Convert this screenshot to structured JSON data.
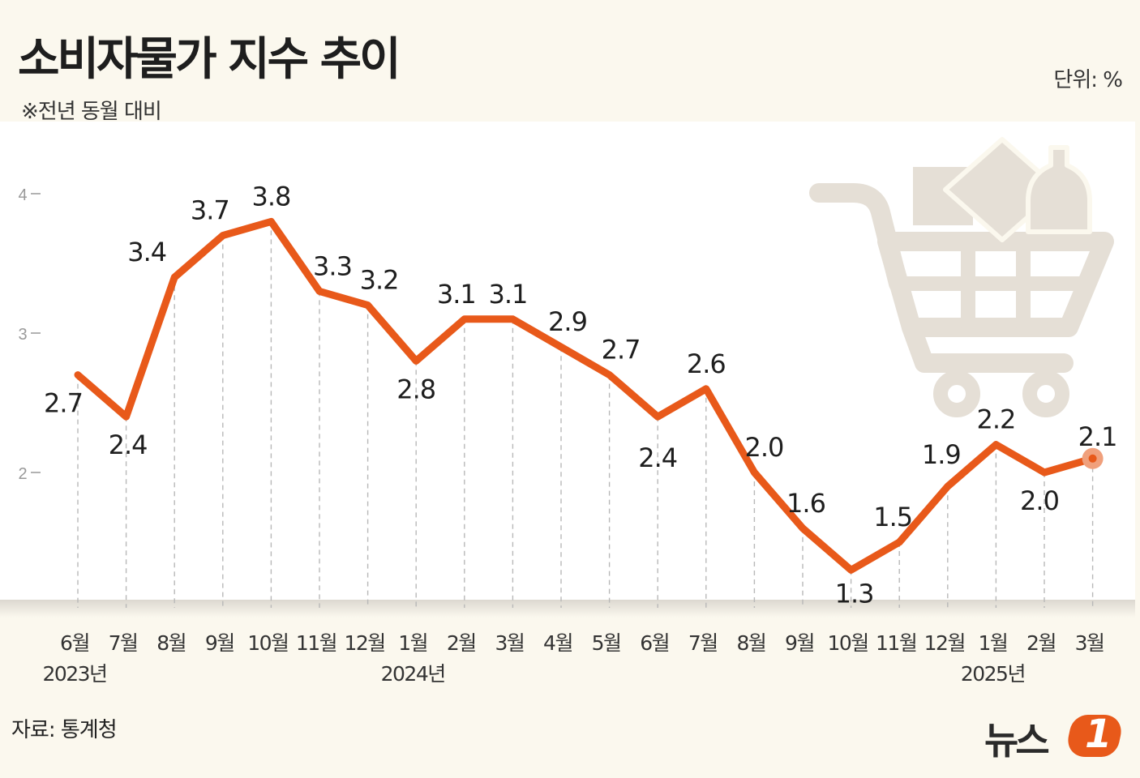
{
  "title": "소비자물가 지수 추이",
  "subtitle": "※전년 동월 대비",
  "unit_label": "단위:  %",
  "source": "자료: 통계청",
  "logo": {
    "text": "뉴스",
    "badge": "1"
  },
  "colors": {
    "line": "#e8591a",
    "highlight": "#f0a07c",
    "background": "#fbf8ee",
    "cart_icon": "#e5dfd6"
  },
  "icons": [
    "shopping-cart-icon"
  ],
  "chart_data": {
    "type": "line",
    "categories": [
      "6월",
      "7월",
      "8월",
      "9월",
      "10월",
      "11월",
      "12월",
      "1월",
      "2월",
      "3월",
      "4월",
      "5월",
      "6월",
      "7월",
      "8월",
      "9월",
      "10월",
      "11월",
      "12월",
      "1월",
      "2월",
      "3월"
    ],
    "year_labels": [
      {
        "index": 0,
        "text": "2023년"
      },
      {
        "index": 7,
        "text": "2024년"
      },
      {
        "index": 19,
        "text": "2025년"
      }
    ],
    "values": [
      2.7,
      2.4,
      3.4,
      3.7,
      3.8,
      3.3,
      3.2,
      2.8,
      3.1,
      3.1,
      2.9,
      2.7,
      2.4,
      2.6,
      2.0,
      1.6,
      1.3,
      1.5,
      1.9,
      2.2,
      2.0,
      2.1
    ],
    "value_labels": [
      "2.7",
      "2.4",
      "3.4",
      "3.7",
      "3.8",
      "3.3",
      "3.2",
      "2.8",
      "3.1",
      "3.1",
      "2.9",
      "2.7",
      "2.4",
      "2.6",
      "2.0",
      "1.6",
      "1.3",
      "1.5",
      "1.9",
      "2.2",
      "2.0",
      "2.1"
    ],
    "y_ticks": [
      {
        "value": 4,
        "label": "4"
      },
      {
        "value": 3,
        "label": "3"
      },
      {
        "value": 2,
        "label": "2"
      }
    ],
    "highlight_last": true,
    "grid": "vertical dashed drop lines"
  }
}
